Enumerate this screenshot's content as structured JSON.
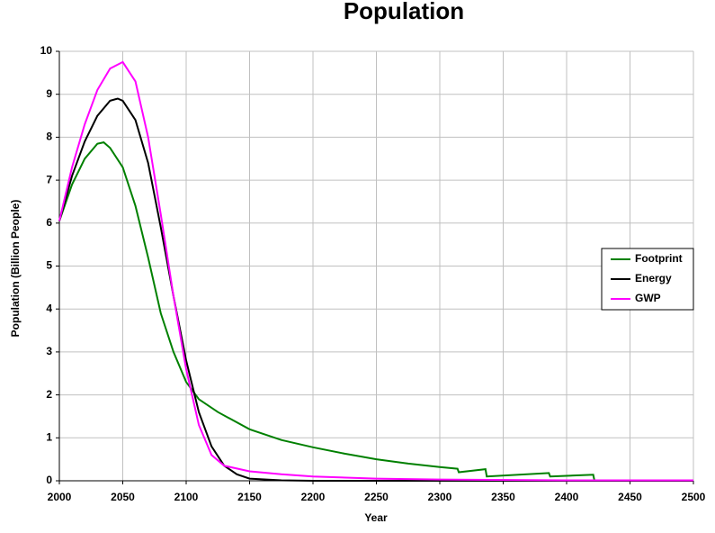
{
  "chart_data": {
    "type": "line",
    "title": "Population",
    "x_label": "Year",
    "y_label": "Population (Billion People)",
    "xlim": [
      2000,
      2500
    ],
    "xticks": [
      2000,
      2050,
      2100,
      2150,
      2200,
      2250,
      2300,
      2350,
      2400,
      2450,
      2500
    ],
    "ylim": [
      0,
      10
    ],
    "yticks": [
      0,
      1,
      2,
      3,
      4,
      5,
      6,
      7,
      8,
      9,
      10
    ],
    "grid": true,
    "legend": "right",
    "series": [
      {
        "name": "Footprint",
        "color": "#008000",
        "x": [
          2000,
          2010,
          2020,
          2030,
          2035,
          2040,
          2050,
          2060,
          2070,
          2080,
          2090,
          2100,
          2110,
          2125,
          2150,
          2175,
          2200,
          2225,
          2250,
          2275,
          2300,
          2314,
          2315,
          2336,
          2337,
          2386,
          2387,
          2421,
          2422,
          2500
        ],
        "values": [
          6.05,
          6.9,
          7.5,
          7.85,
          7.88,
          7.75,
          7.3,
          6.4,
          5.2,
          3.9,
          3.0,
          2.3,
          1.9,
          1.6,
          1.2,
          0.95,
          0.78,
          0.63,
          0.5,
          0.4,
          0.32,
          0.28,
          0.2,
          0.27,
          0.1,
          0.18,
          0.1,
          0.14,
          0.0,
          0.0
        ]
      },
      {
        "name": "Energy",
        "color": "#000000",
        "x": [
          2000,
          2010,
          2020,
          2030,
          2040,
          2046,
          2050,
          2060,
          2070,
          2080,
          2090,
          2100,
          2110,
          2120,
          2130,
          2140,
          2150,
          2175,
          2200,
          2500
        ],
        "values": [
          6.05,
          7.1,
          7.9,
          8.5,
          8.85,
          8.9,
          8.85,
          8.4,
          7.4,
          5.9,
          4.3,
          2.8,
          1.6,
          0.8,
          0.35,
          0.15,
          0.05,
          0.01,
          0.0,
          0.0
        ]
      },
      {
        "name": "GWP",
        "color": "#ff00ff",
        "x": [
          2000,
          2010,
          2020,
          2030,
          2040,
          2050,
          2060,
          2070,
          2080,
          2090,
          2100,
          2110,
          2120,
          2130,
          2150,
          2175,
          2200,
          2250,
          2300,
          2400,
          2500
        ],
        "values": [
          6.05,
          7.3,
          8.3,
          9.1,
          9.6,
          9.75,
          9.3,
          8.0,
          6.2,
          4.3,
          2.6,
          1.3,
          0.6,
          0.35,
          0.22,
          0.15,
          0.1,
          0.05,
          0.03,
          0.01,
          0.01
        ]
      }
    ]
  }
}
